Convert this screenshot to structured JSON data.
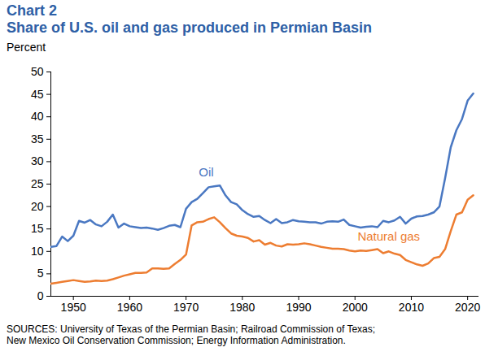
{
  "chart_data": {
    "type": "line",
    "title": "Chart 2",
    "subtitle": "Share of U.S. oil and gas produced in Permian Basin",
    "ylabel": "Percent",
    "caption": "SOURCES: University of Texas of the Permian Basin; Railroad Commission of Texas; New Mexico Oil Conservation Commission; Energy Information Administration.",
    "x": [
      1946,
      1947,
      1948,
      1949,
      1950,
      1951,
      1952,
      1953,
      1954,
      1955,
      1956,
      1957,
      1958,
      1959,
      1960,
      1961,
      1962,
      1963,
      1964,
      1965,
      1966,
      1967,
      1968,
      1969,
      1970,
      1971,
      1972,
      1973,
      1974,
      1975,
      1976,
      1977,
      1978,
      1979,
      1980,
      1981,
      1982,
      1983,
      1984,
      1985,
      1986,
      1987,
      1988,
      1989,
      1990,
      1991,
      1992,
      1993,
      1994,
      1995,
      1996,
      1997,
      1998,
      1999,
      2000,
      2001,
      2002,
      2003,
      2004,
      2005,
      2006,
      2007,
      2008,
      2009,
      2010,
      2011,
      2012,
      2013,
      2014,
      2015,
      2016,
      2017,
      2018,
      2019,
      2020,
      2021
    ],
    "series": [
      {
        "name": "Oil",
        "color": "#4a78c2",
        "values": [
          11,
          11.2,
          13.3,
          12.3,
          13.5,
          16.8,
          16.4,
          17,
          16,
          15.6,
          16.6,
          18.2,
          15.3,
          16.2,
          15.6,
          15.4,
          15.2,
          15.3,
          15.1,
          14.8,
          15.2,
          15.7,
          15.9,
          15.4,
          19.5,
          21,
          21.7,
          23,
          24.3,
          24.5,
          24.7,
          22.5,
          21,
          20.5,
          19.2,
          18.3,
          17.7,
          17.9,
          17,
          16.3,
          17.2,
          16.3,
          16.5,
          17,
          16.7,
          16.6,
          16.5,
          16.5,
          16.2,
          16.6,
          16.7,
          16.6,
          17.1,
          15.9,
          15.6,
          15.3,
          15.5,
          15.6,
          15.4,
          16.8,
          16.5,
          16.9,
          17.7,
          16.2,
          17.3,
          17.8,
          17.9,
          18.2,
          18.7,
          20,
          26.3,
          33.2,
          37,
          39.5,
          43.6,
          45.2
        ]
      },
      {
        "name": "Natural gas",
        "color": "#ed7d31",
        "values": [
          2.8,
          3,
          3.2,
          3.4,
          3.6,
          3.4,
          3.2,
          3.3,
          3.5,
          3.4,
          3.5,
          3.8,
          4.2,
          4.6,
          4.9,
          5.2,
          5.2,
          5.3,
          6.2,
          6.2,
          6.1,
          6.2,
          7.2,
          8.1,
          9.3,
          15.8,
          16.5,
          16.6,
          17.2,
          17.6,
          16.5,
          15.2,
          14,
          13.5,
          13.3,
          13,
          12.2,
          12.5,
          11.5,
          11.9,
          11.3,
          11.1,
          11.6,
          11.5,
          11.6,
          11.8,
          11.6,
          11.3,
          11,
          10.8,
          10.6,
          10.6,
          10.5,
          10.2,
          10,
          10.2,
          10.1,
          10.3,
          10.5,
          9.6,
          10,
          9.5,
          9.2,
          8.1,
          7.6,
          7.1,
          6.8,
          7.3,
          8.5,
          8.8,
          10.5,
          14.5,
          18.2,
          18.7,
          21.5,
          22.5
        ]
      }
    ],
    "annotations": [
      {
        "text": "Oil",
        "x": 1973.6,
        "y": 27.6
      },
      {
        "text": "Natural gas",
        "x": 2006,
        "y": 13.3
      }
    ],
    "xlim": [
      1946,
      2022
    ],
    "xticks": [
      1950,
      1960,
      1970,
      1980,
      1990,
      2000,
      2010,
      2020
    ],
    "ylim": [
      0,
      50
    ],
    "yticks": [
      0,
      5,
      10,
      15,
      20,
      25,
      30,
      35,
      40,
      45,
      50
    ],
    "grid": false
  }
}
